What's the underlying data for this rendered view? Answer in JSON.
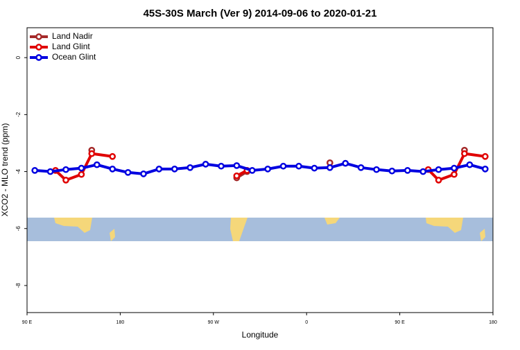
{
  "chart_data": {
    "type": "line",
    "title": "45S-30S March (Ver 9)   2014-09-06 to 2020-01-21",
    "xlabel": "Longitude",
    "ylabel": "XCO2 - MLO trend (ppm)",
    "xlim": [
      90,
      540
    ],
    "xticks": [
      {
        "value": 90,
        "label": "90 E"
      },
      180,
      {
        "value": 270,
        "label": "90 W"
      },
      {
        "value": 360,
        "label": "0"
      },
      {
        "value": 450,
        "label": "90 E"
      },
      {
        "value": 540,
        "label": "180"
      }
    ],
    "ylim": [
      -8.95,
      1.05
    ],
    "yticks": [
      0,
      -2,
      -4,
      -6,
      -8
    ],
    "legend": "top-left",
    "series": [
      {
        "name": "Land Nadir",
        "color": "#a52a2a",
        "x": [
          152.5,
          null,
          292.5,
          302.5,
          null,
          382.5,
          null,
          512.5
        ],
        "values": [
          -3.25,
          null,
          -4.22,
          -4.0,
          null,
          -3.69,
          null,
          -3.25
        ]
      },
      {
        "name": "Land Glint",
        "color": "#e00000",
        "x": [
          117.5,
          127.5,
          142.5,
          152.5,
          172.5,
          null,
          292.5,
          302.5,
          null,
          477.5,
          487.5,
          502.5,
          512.5,
          532.5
        ],
        "values": [
          -3.96,
          -4.3,
          -4.1,
          -3.37,
          -3.47,
          null,
          -4.15,
          -3.96,
          null,
          -3.93,
          -4.3,
          -4.1,
          -3.37,
          -3.47
        ]
      },
      {
        "name": "Ocean Glint",
        "color": "#0000e0",
        "x": [
          97.5,
          112.5,
          127.5,
          142.5,
          157.5,
          172.5,
          187.5,
          202.5,
          217.5,
          232.5,
          247.5,
          262.5,
          277.5,
          292.5,
          307.5,
          322.5,
          337.5,
          352.5,
          367.5,
          382.5,
          397.5,
          412.5,
          427.5,
          442.5,
          457.5,
          472.5,
          487.5,
          502.5,
          517.5,
          532.5
        ],
        "values": [
          -3.96,
          -4.0,
          -3.93,
          -3.88,
          -3.76,
          -3.91,
          -4.03,
          -4.08,
          -3.91,
          -3.91,
          -3.86,
          -3.74,
          -3.81,
          -3.79,
          -3.96,
          -3.91,
          -3.81,
          -3.81,
          -3.88,
          -3.86,
          -3.71,
          -3.86,
          -3.93,
          -3.98,
          -3.96,
          -4.0,
          -3.93,
          -3.88,
          -3.76,
          -3.91
        ]
      }
    ]
  }
}
